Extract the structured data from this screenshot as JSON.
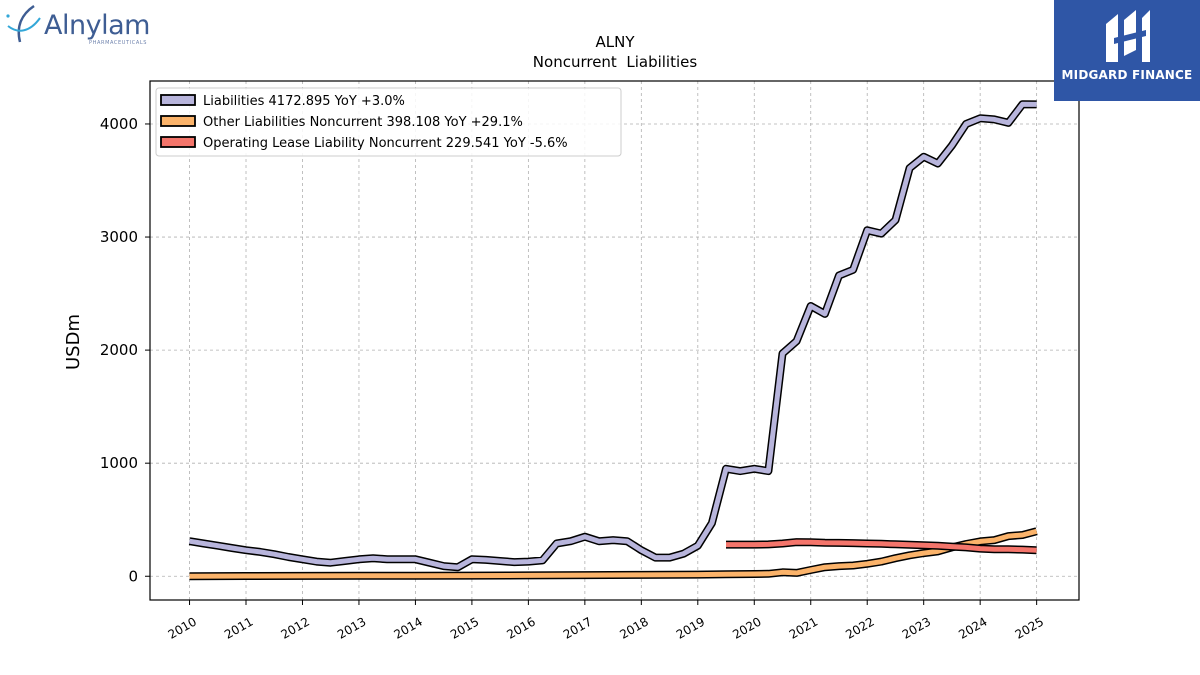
{
  "logos": {
    "left": {
      "name": "Alnylam",
      "subtitle": "PHARMACEUTICALS"
    },
    "right": {
      "name": "MIDGARD FINANCE"
    }
  },
  "chart_data": {
    "type": "line",
    "title": "ALNY",
    "subtitle": "Noncurrent  Liabilities",
    "xlabel": "",
    "ylabel": "USDm",
    "xlim": [
      2009.3,
      2025.75
    ],
    "ylim": [
      -210,
      4380
    ],
    "yticks": [
      0,
      1000,
      2000,
      3000,
      4000
    ],
    "xticks": [
      2010,
      2011,
      2012,
      2013,
      2014,
      2015,
      2016,
      2017,
      2018,
      2019,
      2020,
      2021,
      2022,
      2023,
      2024,
      2025
    ],
    "xticklabels": [
      "2010",
      "2011",
      "2012",
      "2013",
      "2014",
      "2015",
      "2016",
      "2017",
      "2018",
      "2019",
      "2020",
      "2021",
      "2022",
      "2023",
      "2024",
      "2025"
    ],
    "yticklabels": [
      "0",
      "1000",
      "2000",
      "3000",
      "4000"
    ],
    "grid": true,
    "legend_position": "top-left",
    "series": [
      {
        "name": "Liabilities  4172.895 YoY +3.0%",
        "color": "#b8b5dc",
        "points": [
          [
            2010.0,
            310
          ],
          [
            2010.25,
            290
          ],
          [
            2010.5,
            270
          ],
          [
            2010.75,
            250
          ],
          [
            2011.0,
            230
          ],
          [
            2011.25,
            215
          ],
          [
            2011.5,
            195
          ],
          [
            2011.75,
            170
          ],
          [
            2012.0,
            150
          ],
          [
            2012.25,
            130
          ],
          [
            2012.5,
            120
          ],
          [
            2012.75,
            135
          ],
          [
            2013.0,
            150
          ],
          [
            2013.25,
            160
          ],
          [
            2013.5,
            150
          ],
          [
            2013.75,
            150
          ],
          [
            2014.0,
            150
          ],
          [
            2014.25,
            120
          ],
          [
            2014.5,
            90
          ],
          [
            2014.75,
            80
          ],
          [
            2015.0,
            150
          ],
          [
            2015.25,
            145
          ],
          [
            2015.5,
            135
          ],
          [
            2015.75,
            125
          ],
          [
            2016.0,
            130
          ],
          [
            2016.25,
            140
          ],
          [
            2016.5,
            290
          ],
          [
            2016.75,
            310
          ],
          [
            2017.0,
            350
          ],
          [
            2017.25,
            310
          ],
          [
            2017.5,
            320
          ],
          [
            2017.75,
            310
          ],
          [
            2018.0,
            230
          ],
          [
            2018.25,
            165
          ],
          [
            2018.5,
            165
          ],
          [
            2018.75,
            200
          ],
          [
            2019.0,
            270
          ],
          [
            2019.25,
            470
          ],
          [
            2019.5,
            950
          ],
          [
            2019.75,
            930
          ],
          [
            2020.0,
            950
          ],
          [
            2020.25,
            930
          ],
          [
            2020.5,
            1970
          ],
          [
            2020.75,
            2080
          ],
          [
            2021.0,
            2390
          ],
          [
            2021.25,
            2320
          ],
          [
            2021.5,
            2660
          ],
          [
            2021.75,
            2710
          ],
          [
            2022.0,
            3060
          ],
          [
            2022.25,
            3030
          ],
          [
            2022.5,
            3150
          ],
          [
            2022.75,
            3610
          ],
          [
            2023.0,
            3710
          ],
          [
            2023.25,
            3650
          ],
          [
            2023.5,
            3810
          ],
          [
            2023.75,
            4000
          ],
          [
            2024.0,
            4050
          ],
          [
            2024.25,
            4040
          ],
          [
            2024.5,
            4010
          ],
          [
            2024.75,
            4175
          ],
          [
            2025.0,
            4173
          ]
        ]
      },
      {
        "name": "Other Liabilities Noncurrent  398.108 YoY +29.1%",
        "color": "#fbb36a",
        "points": [
          [
            2010.0,
            0
          ],
          [
            2011.0,
            2
          ],
          [
            2012.0,
            3
          ],
          [
            2013.0,
            4
          ],
          [
            2014.0,
            5
          ],
          [
            2015.0,
            6
          ],
          [
            2016.0,
            8
          ],
          [
            2017.0,
            10
          ],
          [
            2018.0,
            12
          ],
          [
            2019.0,
            15
          ],
          [
            2019.5,
            18
          ],
          [
            2020.0,
            20
          ],
          [
            2020.25,
            22
          ],
          [
            2020.5,
            35
          ],
          [
            2020.75,
            30
          ],
          [
            2021.0,
            55
          ],
          [
            2021.25,
            80
          ],
          [
            2021.5,
            90
          ],
          [
            2021.75,
            95
          ],
          [
            2022.0,
            110
          ],
          [
            2022.25,
            130
          ],
          [
            2022.5,
            160
          ],
          [
            2022.75,
            185
          ],
          [
            2023.0,
            205
          ],
          [
            2023.25,
            220
          ],
          [
            2023.5,
            255
          ],
          [
            2023.75,
            285
          ],
          [
            2024.0,
            308
          ],
          [
            2024.25,
            320
          ],
          [
            2024.5,
            355
          ],
          [
            2024.75,
            365
          ],
          [
            2025.0,
            398
          ]
        ]
      },
      {
        "name": "Operating Lease Liability Noncurrent  229.541 YoY -5.6%",
        "color": "#f4756b",
        "points": [
          [
            2019.5,
            280
          ],
          [
            2019.75,
            280
          ],
          [
            2020.0,
            280
          ],
          [
            2020.25,
            282
          ],
          [
            2020.5,
            290
          ],
          [
            2020.75,
            302
          ],
          [
            2021.0,
            300
          ],
          [
            2021.25,
            296
          ],
          [
            2021.5,
            295
          ],
          [
            2021.75,
            293
          ],
          [
            2022.0,
            290
          ],
          [
            2022.25,
            287
          ],
          [
            2022.5,
            283
          ],
          [
            2022.75,
            278
          ],
          [
            2023.0,
            274
          ],
          [
            2023.25,
            270
          ],
          [
            2023.5,
            262
          ],
          [
            2023.75,
            255
          ],
          [
            2024.0,
            245
          ],
          [
            2024.25,
            238
          ],
          [
            2024.5,
            238
          ],
          [
            2024.75,
            236
          ],
          [
            2025.0,
            230
          ]
        ]
      }
    ]
  }
}
